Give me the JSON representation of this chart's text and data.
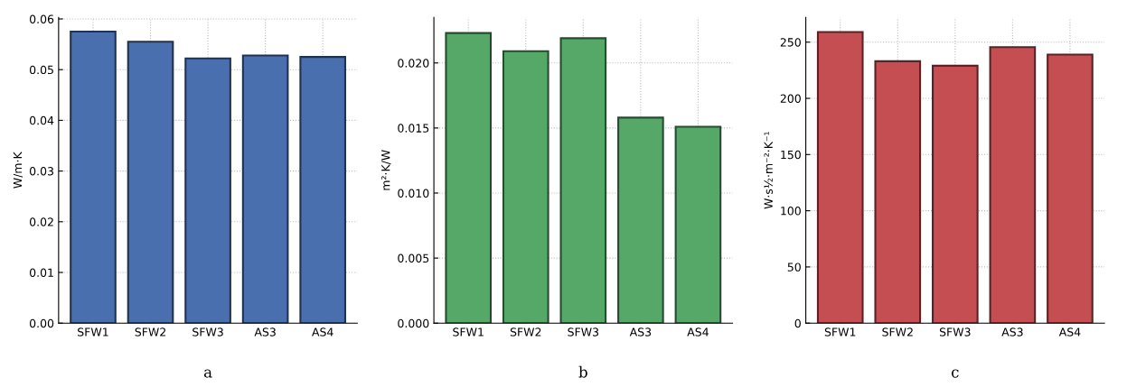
{
  "chart_data": [
    {
      "type": "bar",
      "xlabel": "a",
      "ylabel": "W/m·K",
      "categories": [
        "SFW1",
        "SFW2",
        "SFW3",
        "AS3",
        "AS4"
      ],
      "values": [
        0.0575,
        0.0555,
        0.0522,
        0.0528,
        0.0525
      ],
      "color": "#4a6fae",
      "ylim": [
        0,
        0.0603
      ],
      "yticks": [
        {
          "value": 0,
          "label": "0.00"
        },
        0.01,
        0.02,
        0.03,
        0.04,
        0.05,
        0.06
      ],
      "grid": true
    },
    {
      "type": "bar",
      "xlabel": "b",
      "ylabel": "m²·K/W",
      "categories": [
        "SFW1",
        "SFW2",
        "SFW3",
        "AS3",
        "AS4"
      ],
      "values": [
        0.0223,
        0.0209,
        0.0219,
        0.0158,
        0.0151
      ],
      "color": "#55a868",
      "ylim": [
        0,
        0.0235
      ],
      "yticks": [
        {
          "value": 0,
          "label": "0.000"
        },
        0.005,
        {
          "value": 0.01,
          "label": "0.010"
        },
        0.015,
        {
          "value": 0.02,
          "label": "0.020"
        }
      ],
      "grid": true
    },
    {
      "type": "bar",
      "xlabel": "c",
      "ylabel": "W·s½·m⁻²·K⁻¹",
      "categories": [
        "SFW1",
        "SFW2",
        "SFW3",
        "AS3",
        "AS4"
      ],
      "values": [
        259,
        233,
        229,
        245.5,
        239
      ],
      "color": "#c44e52",
      "ylim": [
        0,
        272
      ],
      "yticks": [
        0,
        50,
        100,
        150,
        200,
        250
      ],
      "grid": true
    }
  ]
}
